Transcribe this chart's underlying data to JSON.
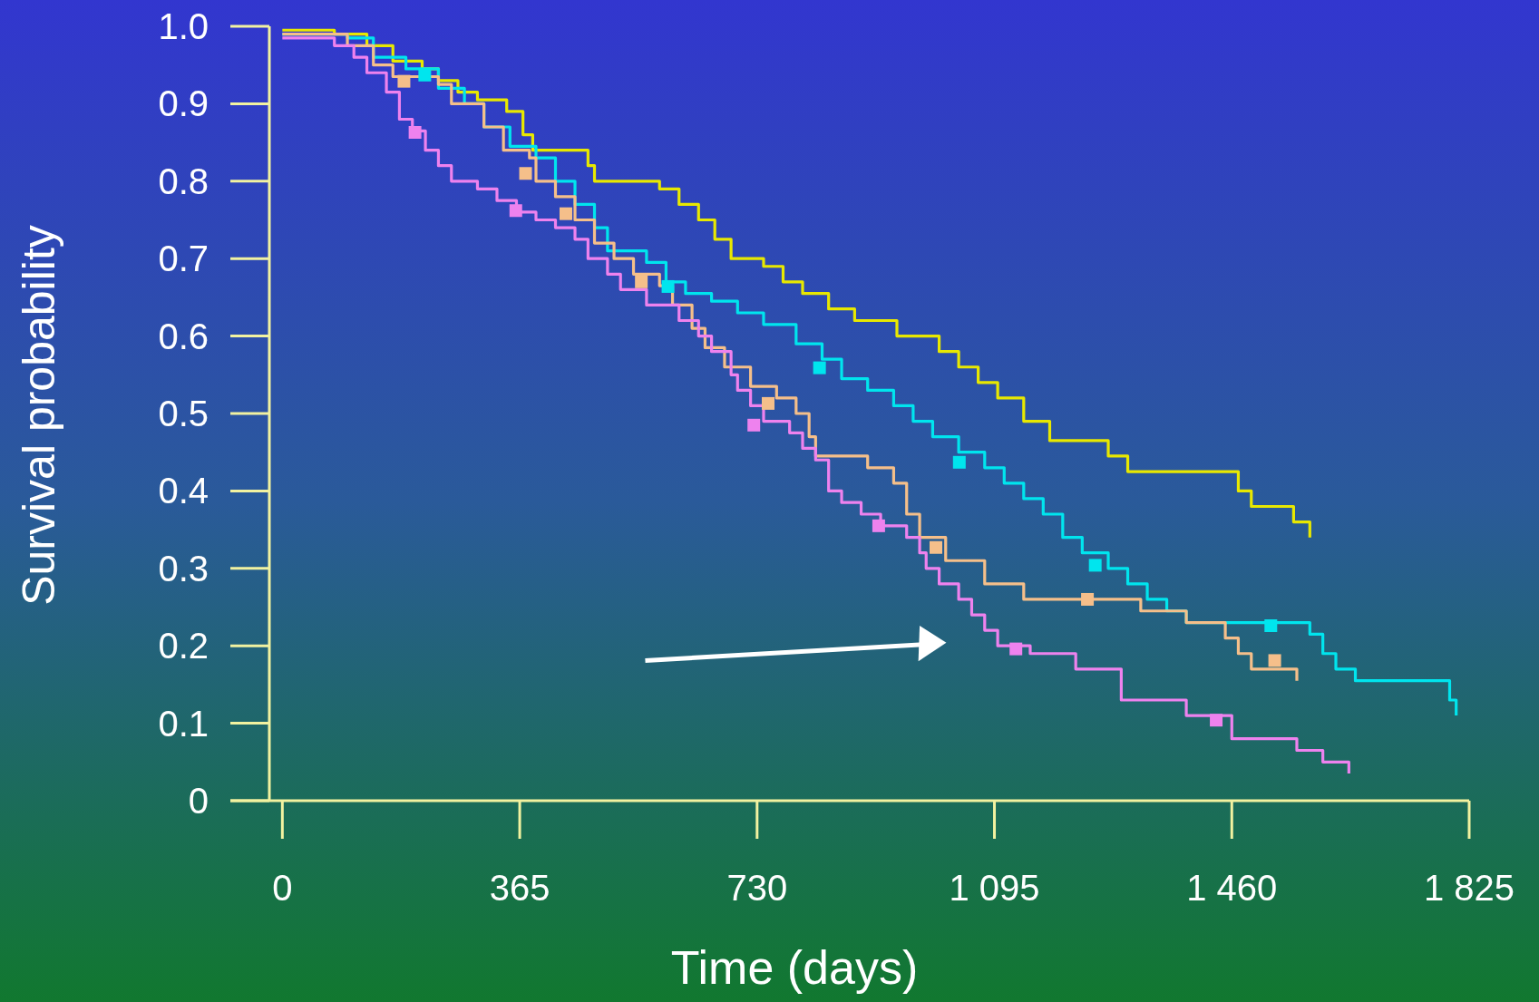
{
  "chart_data": {
    "type": "step",
    "xlabel": "Time (days)",
    "ylabel": "Survival probability",
    "xlim": [
      -20,
      1825
    ],
    "ylim": [
      0,
      1
    ],
    "xticks": [
      0,
      365,
      730,
      {
        "value": 1095,
        "label": "1 095"
      },
      {
        "value": 1460,
        "label": "1 460"
      },
      {
        "value": 1825,
        "label": "1 825"
      }
    ],
    "yticks": [
      0,
      0.1,
      0.2,
      0.3,
      0.4,
      0.5,
      0.6,
      0.7,
      0.8,
      0.9,
      {
        "value": 1,
        "label": "1.0"
      }
    ],
    "grid": false,
    "series": [
      {
        "marker": "none",
        "color": "#e8e800",
        "x": [
          0,
          80,
          130,
          170,
          215,
          240,
          270,
          300,
          345,
          370,
          385,
          470,
          480,
          580,
          610,
          640,
          665,
          690,
          740,
          770,
          800,
          840,
          880,
          945,
          1010,
          1040,
          1070,
          1100,
          1140,
          1180,
          1270,
          1300,
          1470,
          1490,
          1555,
          1580
        ],
        "values": [
          0.995,
          0.99,
          0.975,
          0.955,
          0.945,
          0.93,
          0.915,
          0.905,
          0.89,
          0.86,
          0.84,
          0.82,
          0.8,
          0.79,
          0.77,
          0.75,
          0.725,
          0.7,
          0.69,
          0.67,
          0.655,
          0.635,
          0.62,
          0.6,
          0.58,
          0.56,
          0.54,
          0.52,
          0.49,
          0.465,
          0.445,
          0.425,
          0.4,
          0.38,
          0.36,
          0.34
        ]
      },
      {
        "marker": "none",
        "color": "#00e5ee",
        "x": [
          0,
          100,
          140,
          190,
          240,
          280,
          310,
          350,
          390,
          420,
          450,
          480,
          500,
          560,
          590,
          620,
          660,
          700,
          740,
          790,
          830,
          860,
          900,
          940,
          970,
          1000,
          1040,
          1080,
          1110,
          1140,
          1170,
          1200,
          1230,
          1270,
          1300,
          1330,
          1360,
          1390,
          1580,
          1600,
          1620,
          1650,
          1795,
          1805
        ],
        "values": [
          0.99,
          0.985,
          0.96,
          0.945,
          0.92,
          0.9,
          0.87,
          0.845,
          0.83,
          0.8,
          0.77,
          0.74,
          0.71,
          0.695,
          0.67,
          0.655,
          0.645,
          0.63,
          0.615,
          0.59,
          0.57,
          0.545,
          0.53,
          0.51,
          0.49,
          0.47,
          0.45,
          0.43,
          0.41,
          0.39,
          0.37,
          0.34,
          0.32,
          0.3,
          0.28,
          0.26,
          0.245,
          0.23,
          0.215,
          0.19,
          0.17,
          0.155,
          0.13,
          0.11
        ]
      },
      {
        "marker": "none",
        "color": "#f5bf8a",
        "x": [
          0,
          100,
          140,
          170,
          240,
          260,
          310,
          340,
          380,
          390,
          420,
          450,
          480,
          510,
          540,
          580,
          600,
          630,
          650,
          680,
          720,
          760,
          790,
          810,
          820,
          900,
          940,
          960,
          980,
          1020,
          1080,
          1140,
          1320,
          1390,
          1450,
          1470,
          1490,
          1560
        ],
        "values": [
          0.99,
          0.975,
          0.95,
          0.935,
          0.925,
          0.9,
          0.87,
          0.84,
          0.83,
          0.8,
          0.78,
          0.75,
          0.72,
          0.7,
          0.68,
          0.665,
          0.64,
          0.61,
          0.585,
          0.56,
          0.535,
          0.52,
          0.5,
          0.47,
          0.445,
          0.43,
          0.41,
          0.37,
          0.34,
          0.31,
          0.28,
          0.26,
          0.245,
          0.23,
          0.21,
          0.19,
          0.17,
          0.155
        ]
      },
      {
        "marker": "none",
        "color": "#ee82ee",
        "x": [
          0,
          80,
          110,
          130,
          160,
          180,
          200,
          220,
          240,
          260,
          300,
          330,
          360,
          390,
          420,
          450,
          470,
          500,
          520,
          560,
          610,
          640,
          660,
          690,
          700,
          720,
          740,
          780,
          800,
          820,
          840,
          860,
          890,
          920,
          960,
          980,
          990,
          1010,
          1040,
          1060,
          1080,
          1100,
          1150,
          1220,
          1290,
          1390,
          1460,
          1560,
          1600,
          1640
        ],
        "values": [
          0.985,
          0.975,
          0.96,
          0.94,
          0.915,
          0.88,
          0.865,
          0.84,
          0.82,
          0.8,
          0.79,
          0.775,
          0.76,
          0.75,
          0.74,
          0.725,
          0.7,
          0.68,
          0.66,
          0.64,
          0.62,
          0.6,
          0.58,
          0.55,
          0.53,
          0.51,
          0.49,
          0.475,
          0.455,
          0.44,
          0.4,
          0.385,
          0.37,
          0.355,
          0.34,
          0.32,
          0.3,
          0.28,
          0.26,
          0.24,
          0.22,
          0.2,
          0.19,
          0.17,
          0.13,
          0.11,
          0.08,
          0.065,
          0.05,
          0.035
        ]
      },
      {
        "type": "scatter",
        "marker": "square",
        "color": "#00e5ee",
        "x": [
          219,
          593,
          826,
          1041,
          1250,
          1520
        ],
        "values": [
          0.937,
          0.664,
          0.559,
          0.437,
          0.304,
          0.226
        ]
      },
      {
        "type": "scatter",
        "marker": "square",
        "color": "#f5bf8a",
        "x": [
          187,
          374,
          436,
          552,
          747,
          1005,
          1238,
          1526
        ],
        "values": [
          0.929,
          0.81,
          0.758,
          0.67,
          0.513,
          0.327,
          0.26,
          0.181
        ]
      },
      {
        "type": "scatter",
        "marker": "square",
        "color": "#ee82ee",
        "x": [
          204,
          359,
          725,
          917,
          1128,
          1436
        ],
        "values": [
          0.863,
          0.762,
          0.485,
          0.355,
          0.196,
          0.104
        ]
      }
    ]
  }
}
